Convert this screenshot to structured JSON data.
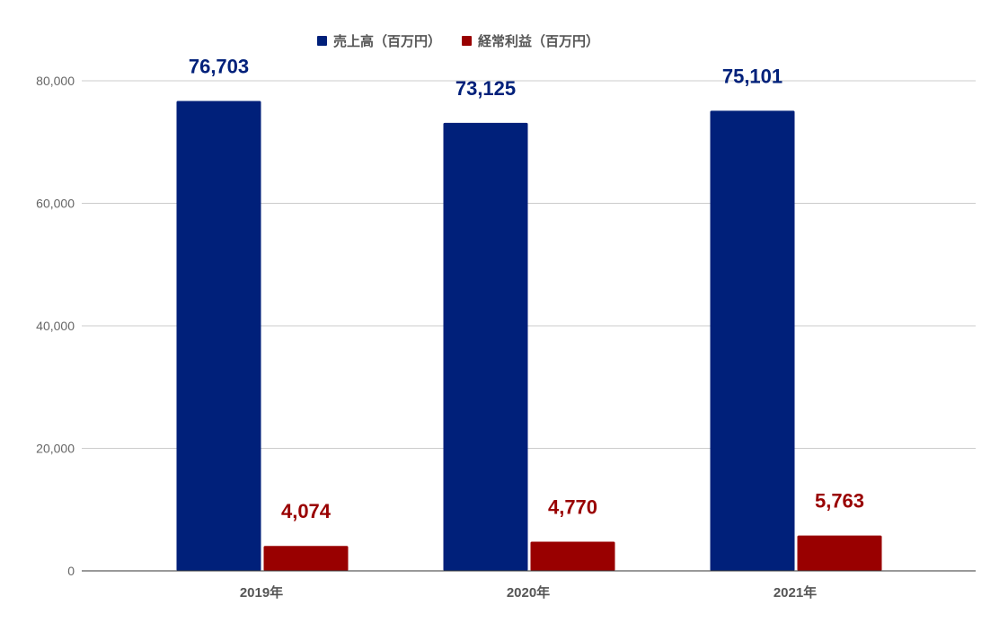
{
  "chart_data": {
    "type": "bar",
    "categories": [
      "2019年",
      "2020年",
      "2021年"
    ],
    "series": [
      {
        "name": "売上高（百万円）",
        "values": [
          76703,
          73125,
          75101
        ],
        "labels": [
          "76,703",
          "73,125",
          "75,101"
        ],
        "color": "#00207a"
      },
      {
        "name": "経常利益（百万円）",
        "values": [
          4074,
          4770,
          5763
        ],
        "labels": [
          "4,074",
          "4,770",
          "5,763"
        ],
        "color": "#990000"
      }
    ],
    "y_ticks": [
      0,
      20000,
      40000,
      60000,
      80000
    ],
    "y_tick_labels": [
      "0",
      "20,000",
      "40,000",
      "60,000",
      "80,000"
    ],
    "ylim": [
      0,
      80000
    ],
    "grid": true,
    "legend_position": "top"
  }
}
